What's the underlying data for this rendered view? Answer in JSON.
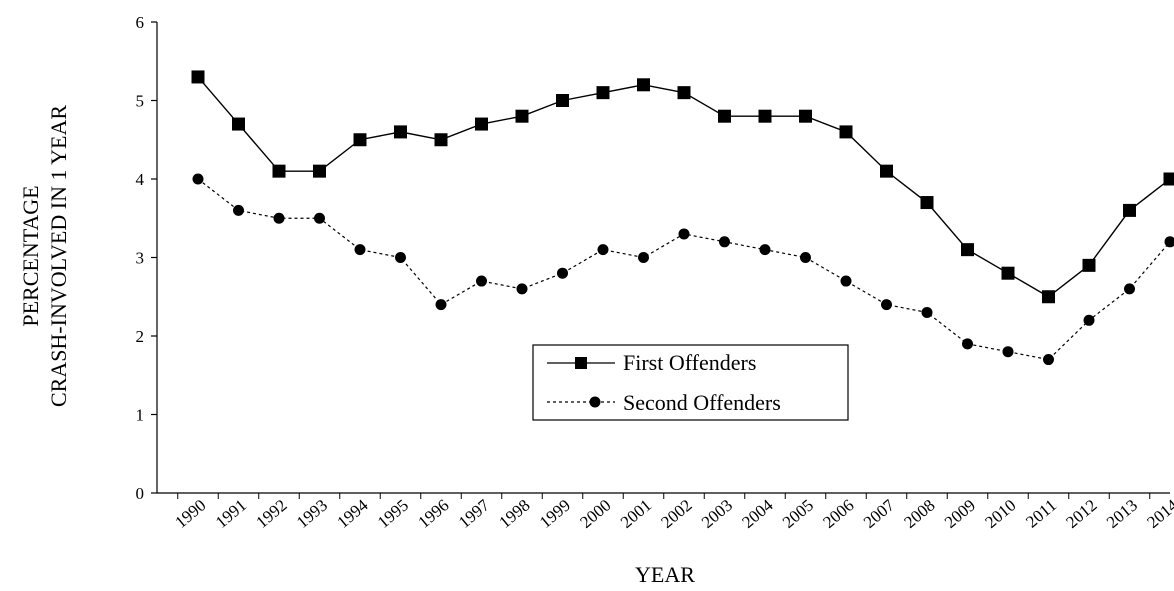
{
  "chart_data": {
    "type": "line",
    "title": "",
    "xlabel": "YEAR",
    "ylabel_line1": "PERCENTAGE",
    "ylabel_line2": "CRASH-INVOLVED IN 1 YEAR",
    "ylim": [
      0,
      6
    ],
    "yticks": [
      0,
      1,
      2,
      3,
      4,
      5,
      6
    ],
    "categories": [
      "1990",
      "1991",
      "1992",
      "1993",
      "1994",
      "1995",
      "1996",
      "1997",
      "1998",
      "1999",
      "2000",
      "2001",
      "2002",
      "2003",
      "2004",
      "2005",
      "2006",
      "2007",
      "2008",
      "2009",
      "2010",
      "2011",
      "2012",
      "2013",
      "2014"
    ],
    "grid": false,
    "legend_position": "center",
    "series": [
      {
        "name": "First Offenders",
        "marker": "square",
        "line_style": "solid",
        "color": "#000000",
        "values": [
          5.3,
          4.7,
          4.1,
          4.1,
          4.5,
          4.6,
          4.5,
          4.7,
          4.8,
          5.0,
          5.1,
          5.2,
          5.1,
          4.8,
          4.8,
          4.8,
          4.6,
          4.1,
          3.7,
          3.1,
          2.8,
          2.5,
          2.9,
          3.6,
          4.0
        ]
      },
      {
        "name": "Second Offenders",
        "marker": "circle",
        "line_style": "dashed",
        "color": "#000000",
        "values": [
          4.0,
          3.6,
          3.5,
          3.5,
          3.1,
          3.0,
          2.4,
          2.7,
          2.6,
          2.8,
          3.1,
          3.0,
          3.3,
          3.2,
          3.1,
          3.0,
          2.7,
          2.4,
          2.3,
          1.9,
          1.8,
          1.7,
          2.2,
          2.6,
          3.2
        ]
      }
    ]
  }
}
